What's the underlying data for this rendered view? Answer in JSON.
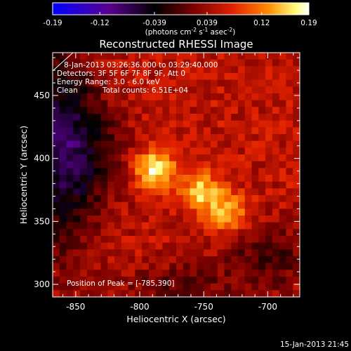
{
  "chart_data": {
    "type": "heatmap",
    "title": "Reconstructed RHESSI Image",
    "xlabel": "Heliocentric X (arcsec)",
    "ylabel": "Heliocentric Y (arcsec)",
    "xlim": [
      -868,
      -675
    ],
    "ylim": [
      290,
      484
    ],
    "x_ticks": [
      "-850",
      "-800",
      "-750",
      "-700"
    ],
    "x_tick_values": [
      -850,
      -800,
      -750,
      -700
    ],
    "y_ticks": [
      "300",
      "350",
      "400",
      "450"
    ],
    "y_tick_values": [
      300,
      350,
      400,
      450
    ],
    "colorbar": {
      "ticks": [
        "-0.19",
        "-0.12",
        "-0.039",
        "0.039",
        "0.12",
        "0.19"
      ],
      "tick_values": [
        -0.19,
        -0.12,
        -0.039,
        0.039,
        0.12,
        0.19
      ],
      "range": [
        -0.19,
        0.19
      ],
      "units_main": "(photons cm",
      "units_sup1": "-2",
      "units_mid": " s",
      "units_sup2": "-1",
      "units_end": " asec",
      "units_sup3": "-2",
      "units_close": ")",
      "colormap": [
        "#0000ff",
        "#5a0090",
        "#000000",
        "#7a0000",
        "#e02000",
        "#ff8a00",
        "#ffff80",
        "#ffffff"
      ]
    },
    "annotations": {
      "time_range": "8-Jan-2013 03:26:36.000 to 03:29:40.000",
      "detectors": "Detectors: 3F 5F 6F 7F 8F 9F, Att 0",
      "energy": "Energy Range: 3.0 - 6.0 keV",
      "clean": "Clean",
      "total_counts": "Total counts: 6.51E+04",
      "peak": "Position of Peak = [-785,390]"
    },
    "sources": [
      {
        "x": -788,
        "y": 391,
        "peak": 0.19
      },
      {
        "x": -751,
        "y": 373,
        "peak": 0.16
      },
      {
        "x": -730,
        "y": 356,
        "peak": 0.15
      }
    ]
  },
  "footer": {
    "date": "15-Jan-2013 21:45"
  }
}
